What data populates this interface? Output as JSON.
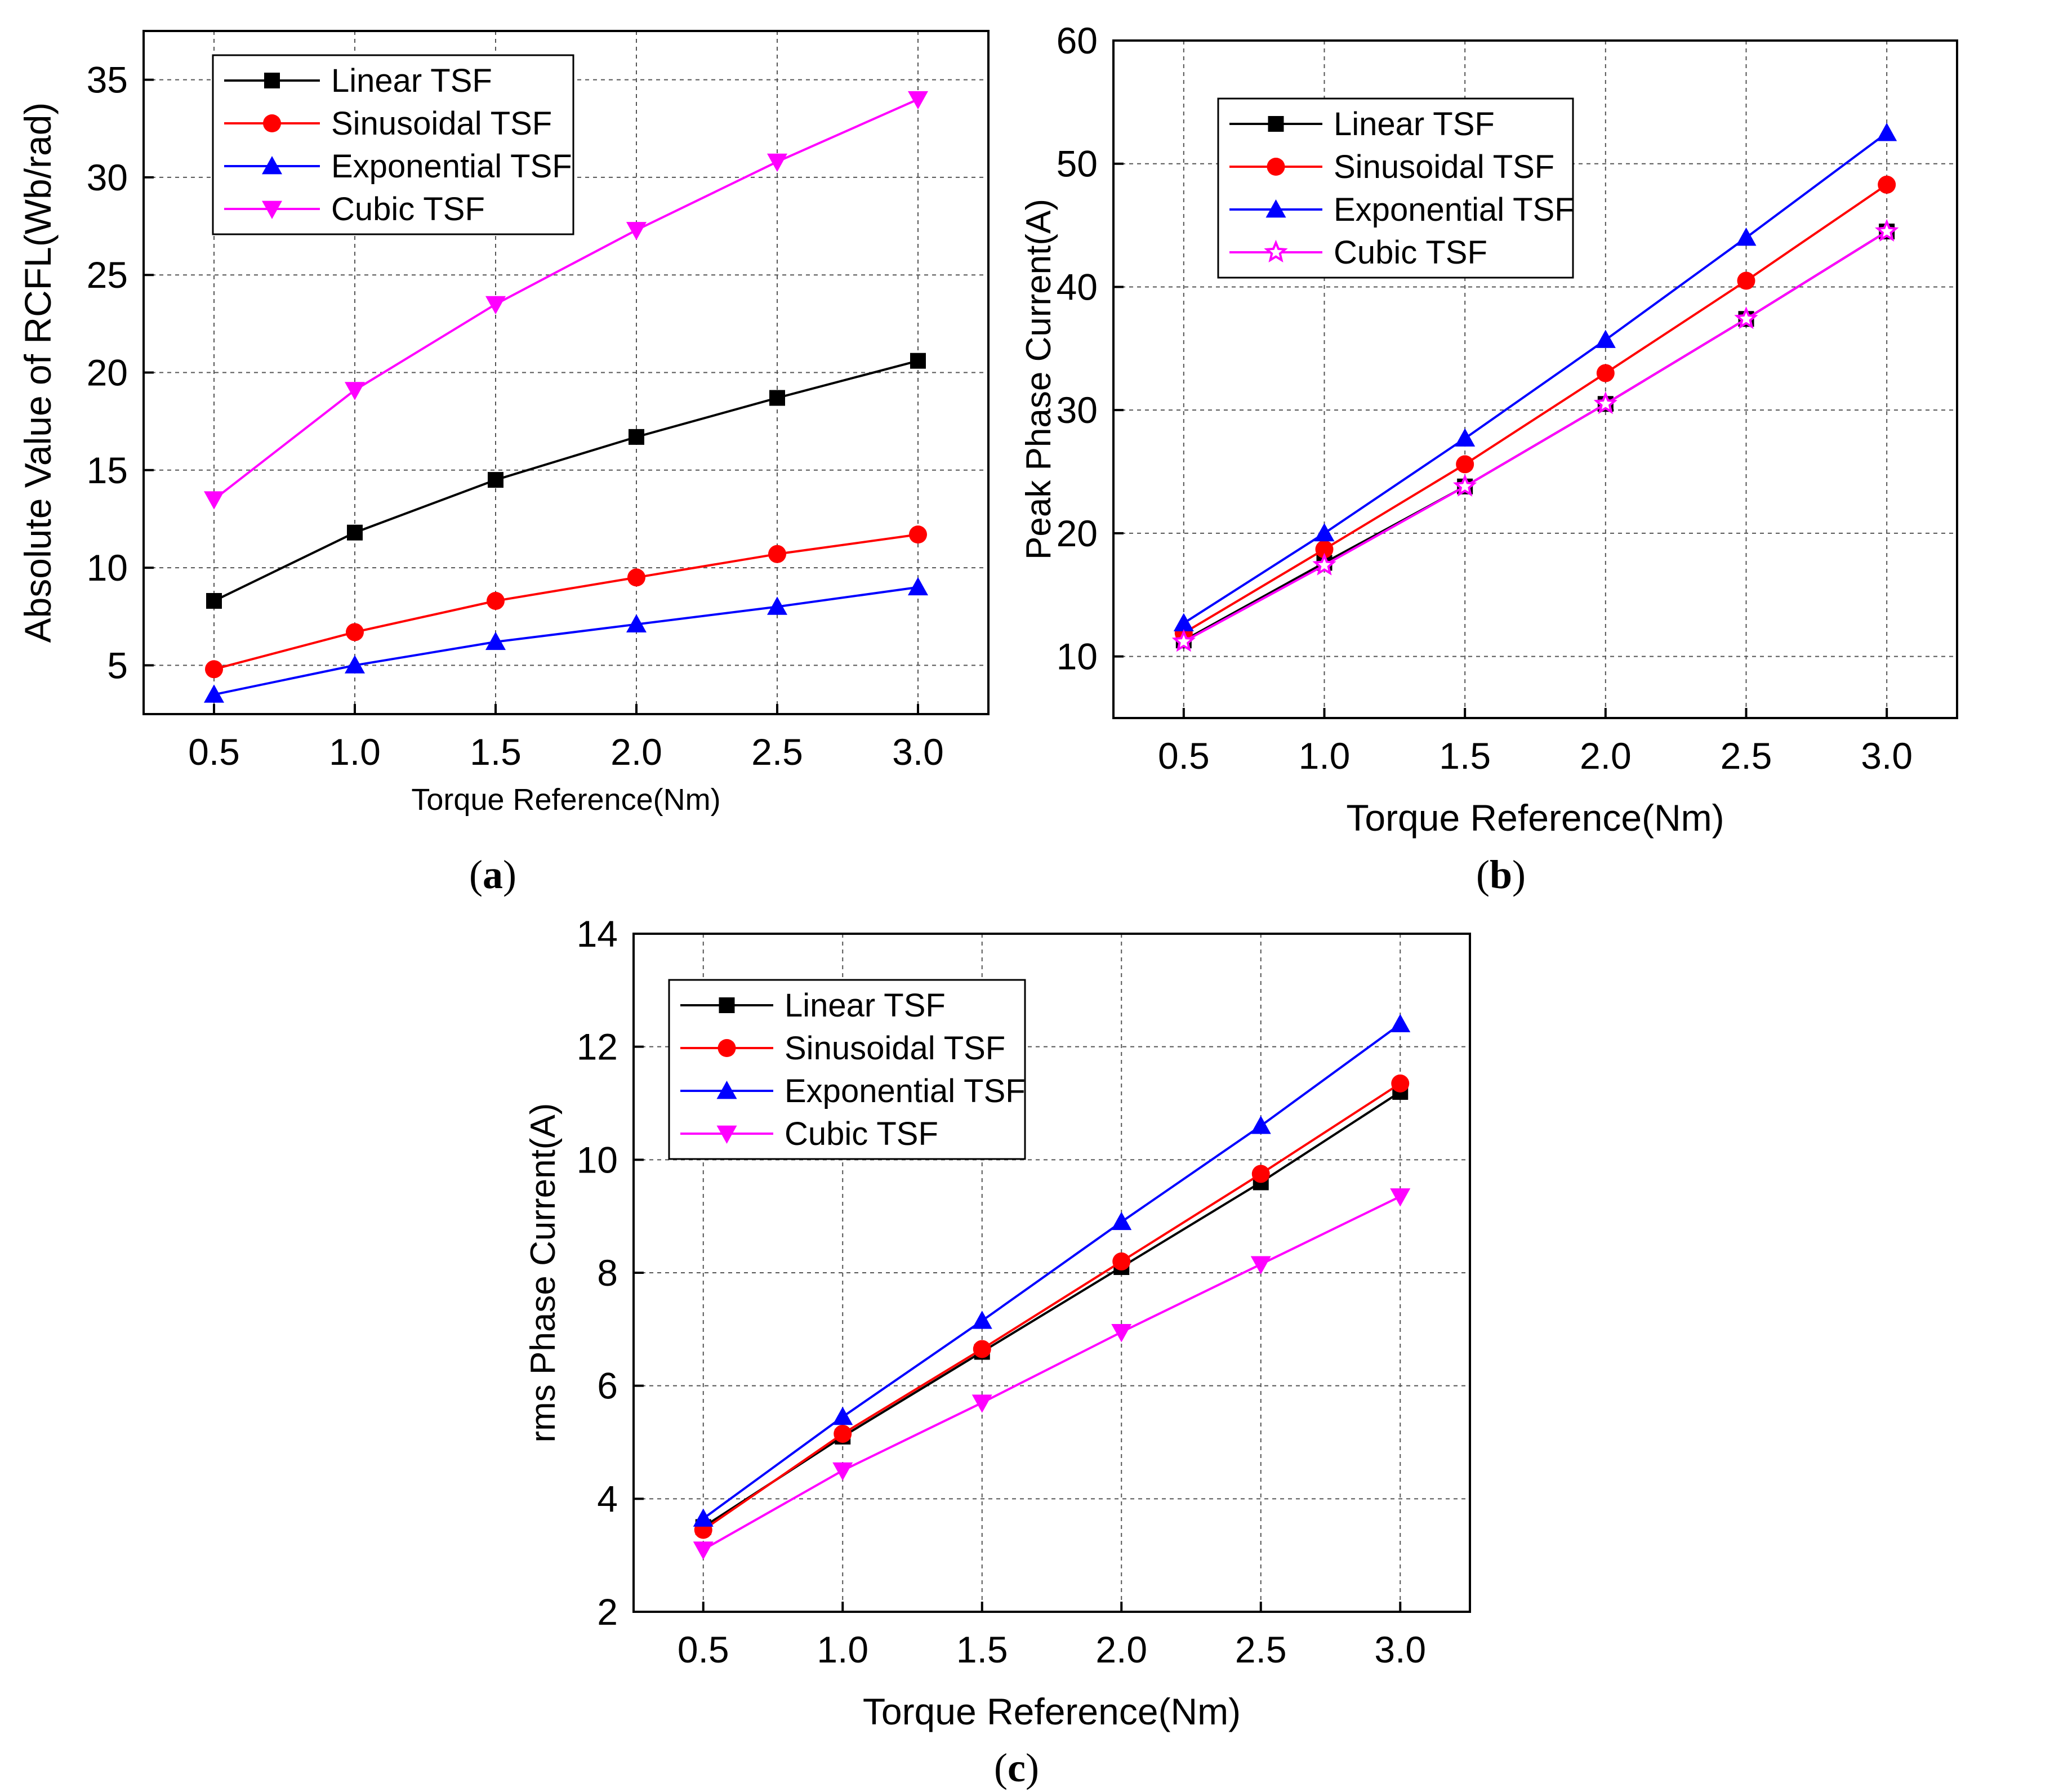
{
  "series_styles": [
    {
      "name": "Linear TSF",
      "color": "#000000",
      "marker": "square"
    },
    {
      "name": "Sinusoidal TSF",
      "color": "#ff0000",
      "marker": "circle"
    },
    {
      "name": "Exponential TSF",
      "color": "#0000ff",
      "marker": "triangle-up"
    },
    {
      "name": "Cubic TSF",
      "color": "#ff00ff",
      "marker": "triangle-down"
    }
  ],
  "chart_data": [
    {
      "id": "a",
      "type": "line",
      "panel_label": "a",
      "xlabel": "Torque Reference(Nm)",
      "ylabel": "Absolute Value of RCFL(Wb/rad)",
      "x": [
        0.5,
        1.0,
        1.5,
        2.0,
        2.5,
        3.0
      ],
      "xticks": [
        "0.5",
        "1.0",
        "1.5",
        "2.0",
        "2.5",
        "3.0"
      ],
      "xlim": [
        0.25,
        3.25
      ],
      "ylim": [
        2.5,
        37.5
      ],
      "yticks": [
        "5",
        "10",
        "15",
        "20",
        "25",
        "30",
        "35"
      ],
      "legend_position": "top-left",
      "grid": true,
      "series": [
        {
          "name": "Linear TSF",
          "values": [
            8.3,
            11.8,
            14.5,
            16.7,
            18.7,
            20.6
          ]
        },
        {
          "name": "Sinusoidal TSF",
          "values": [
            4.8,
            6.7,
            8.3,
            9.5,
            10.7,
            11.7
          ]
        },
        {
          "name": "Exponential TSF",
          "values": [
            3.5,
            5.0,
            6.2,
            7.1,
            8.0,
            9.0
          ]
        },
        {
          "name": "Cubic TSF",
          "values": [
            13.5,
            19.1,
            23.5,
            27.3,
            30.8,
            34.0
          ]
        }
      ]
    },
    {
      "id": "b",
      "type": "line",
      "panel_label": "b",
      "xlabel": "Torque Reference(Nm)",
      "ylabel": "Peak Phase Current(A)",
      "x": [
        0.5,
        1.0,
        1.5,
        2.0,
        2.5,
        3.0
      ],
      "xticks": [
        "0.5",
        "1.0",
        "1.5",
        "2.0",
        "2.5",
        "3.0"
      ],
      "xlim": [
        0.25,
        3.25
      ],
      "ylim": [
        5,
        60
      ],
      "yticks": [
        "10",
        "20",
        "30",
        "40",
        "50",
        "60"
      ],
      "legend_position": "top-left",
      "grid": true,
      "series": [
        {
          "name": "Linear TSF",
          "values": [
            11.3,
            17.6,
            23.8,
            30.5,
            37.4,
            44.5
          ]
        },
        {
          "name": "Sinusoidal TSF",
          "values": [
            11.9,
            18.7,
            25.6,
            33.0,
            40.5,
            48.3
          ]
        },
        {
          "name": "Exponential TSF",
          "values": [
            12.7,
            20.0,
            27.7,
            35.7,
            44.0,
            52.5
          ]
        },
        {
          "name": "Cubic TSF",
          "values": [
            11.2,
            17.4,
            23.8,
            30.5,
            37.4,
            44.5
          ]
        }
      ],
      "cubic_marker": "star"
    },
    {
      "id": "c",
      "type": "line",
      "panel_label": "c",
      "xlabel": "Torque Reference(Nm)",
      "ylabel": "rms Phase Current(A)",
      "x": [
        0.5,
        1.0,
        1.5,
        2.0,
        2.5,
        3.0
      ],
      "xticks": [
        "0.5",
        "1.0",
        "1.5",
        "2.0",
        "2.5",
        "3.0"
      ],
      "xlim": [
        0.25,
        3.25
      ],
      "ylim": [
        2,
        14
      ],
      "yticks": [
        "2",
        "4",
        "6",
        "8",
        "10",
        "12",
        "14"
      ],
      "legend_position": "top-left",
      "grid": true,
      "series": [
        {
          "name": "Linear TSF",
          "values": [
            3.5,
            5.1,
            6.6,
            8.1,
            9.6,
            11.2
          ]
        },
        {
          "name": "Sinusoidal TSF",
          "values": [
            3.45,
            5.15,
            6.65,
            8.2,
            9.75,
            11.35
          ]
        },
        {
          "name": "Exponential TSF",
          "values": [
            3.65,
            5.45,
            7.15,
            8.9,
            10.6,
            12.4
          ]
        },
        {
          "name": "Cubic TSF",
          "values": [
            3.1,
            4.5,
            5.7,
            6.95,
            8.15,
            9.35
          ]
        }
      ]
    }
  ]
}
